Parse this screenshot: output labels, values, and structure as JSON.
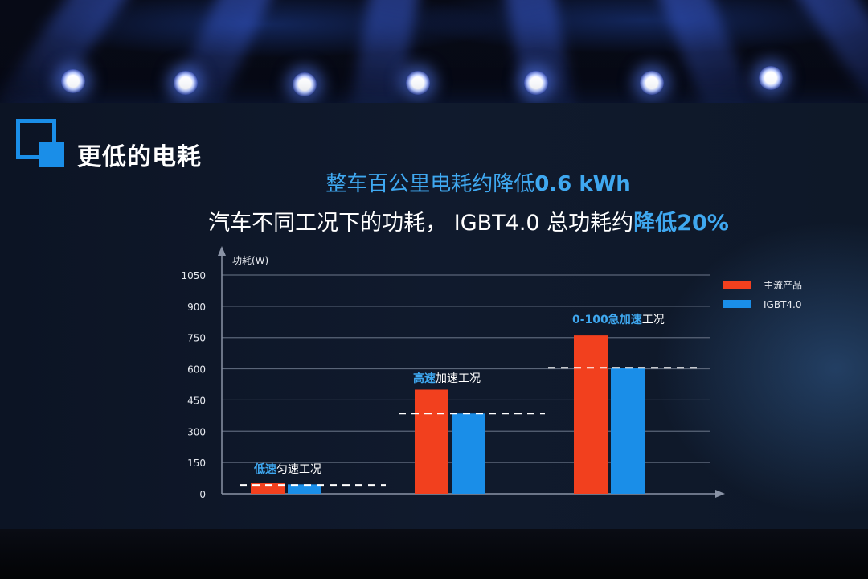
{
  "slide": {
    "title": "更低的电耗",
    "headline_prefix": "整车百公里电耗约降低",
    "headline_value": "0.6 kWh",
    "subline_prefix": "汽车不同工况下的功耗，  IGBT4.0 总功耗约",
    "subline_accent": "降低20%"
  },
  "colors": {
    "accent_blue": "#3fa8f0",
    "series_mainstream": "#f2401e",
    "series_igbt": "#1a8ee8"
  },
  "chart_data": {
    "type": "bar",
    "ylabel": "功耗(W)",
    "ylim": [
      0,
      1050
    ],
    "yticks": [
      0,
      150,
      300,
      450,
      600,
      750,
      900,
      1050
    ],
    "grid": true,
    "legend_position": "top-right",
    "categories": [
      "低速匀速工况",
      "高速加速工况",
      "0-100急加速工况"
    ],
    "category_labels": [
      {
        "highlight": "低速",
        "rest": "匀速工况"
      },
      {
        "highlight": "高速",
        "rest": "加速工况"
      },
      {
        "highlight": "0-100急加速",
        "rest": "工况"
      }
    ],
    "series": [
      {
        "name": "主流产品",
        "values": [
          50,
          500,
          760
        ]
      },
      {
        "name": "IGBT4.0",
        "values": [
          45,
          385,
          605
        ]
      }
    ],
    "reference_lines": [
      42,
      385,
      605
    ]
  }
}
